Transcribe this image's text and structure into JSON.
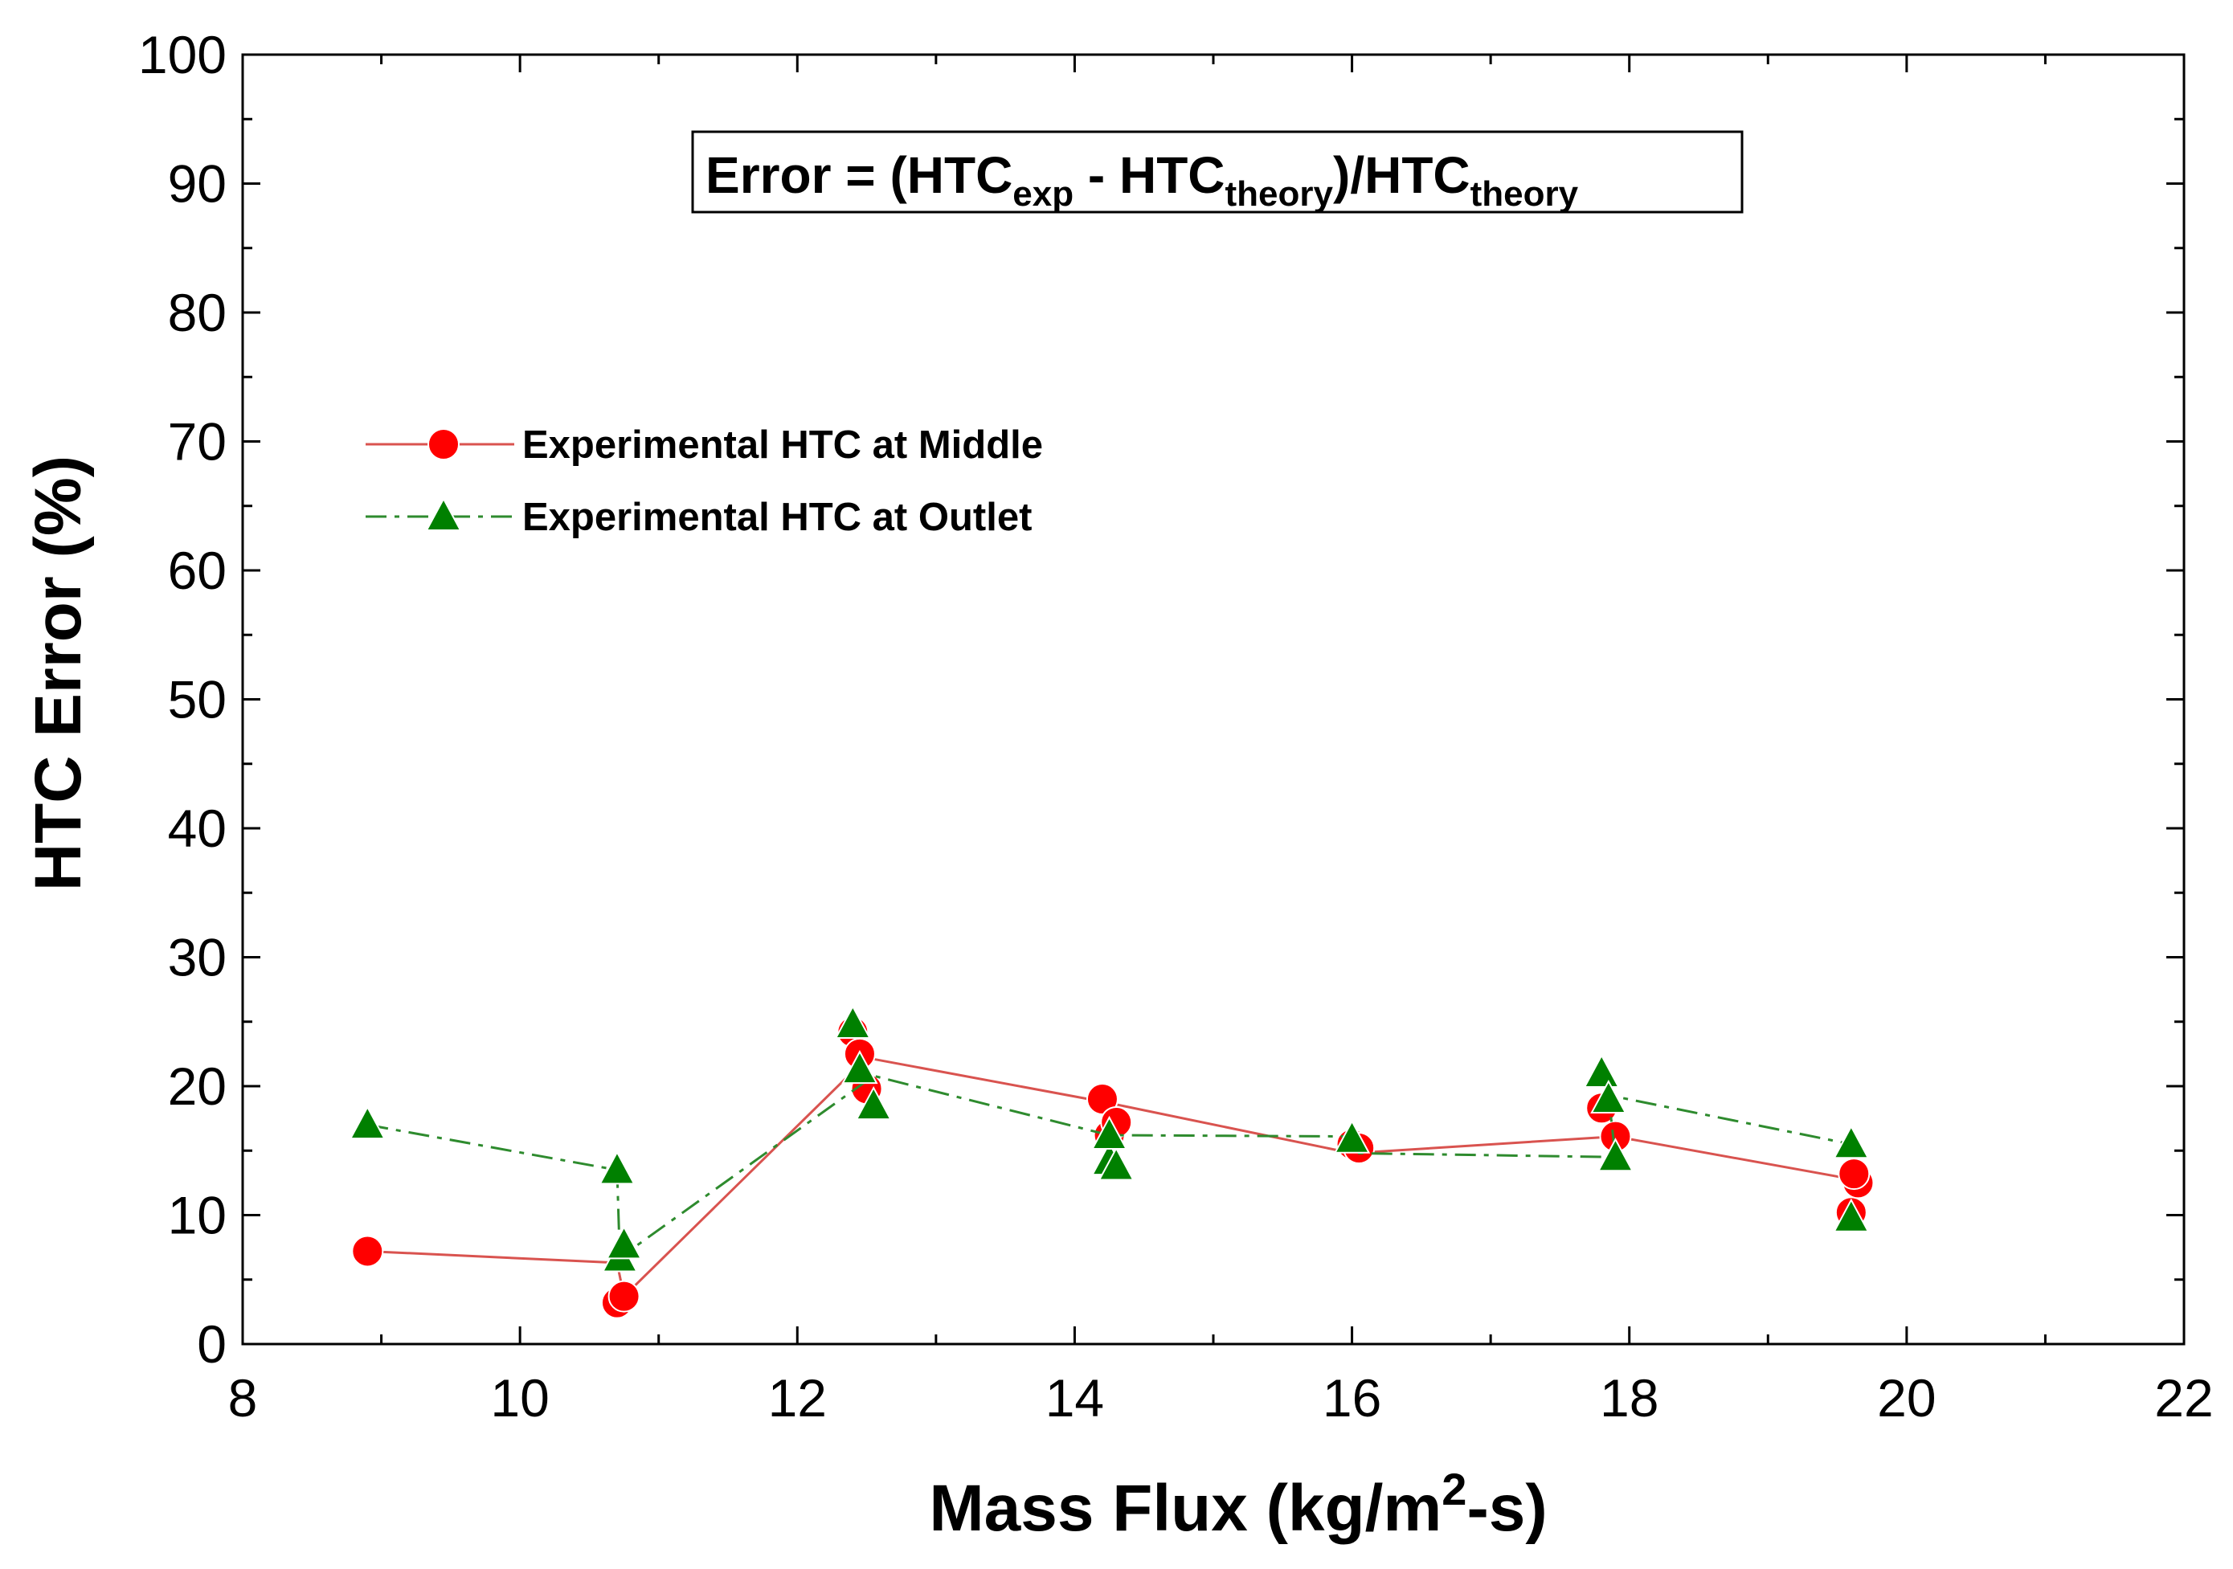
{
  "chart_data": {
    "type": "line",
    "title": "",
    "xlabel": {
      "main": "Mass Flux (kg/m",
      "sup": "2",
      "tail": "-s)"
    },
    "ylabel": "HTC Error (%)",
    "xlim": [
      8,
      22
    ],
    "ylim": [
      0,
      100
    ],
    "xticks": [
      8,
      10,
      12,
      14,
      16,
      18,
      20,
      22
    ],
    "yticks": [
      0,
      10,
      20,
      30,
      40,
      50,
      60,
      70,
      80,
      90,
      100
    ],
    "grid": false,
    "legend_position": "upper-left",
    "annotation": {
      "prefix": "Error = (HTC",
      "sub1": "exp",
      "mid": " - HTC",
      "sub2": "theory",
      "mid2": ")/HTC",
      "sub3": "theory"
    },
    "series": [
      {
        "name": "Experimental HTC at Middle",
        "color": "#ff0000",
        "line_color": "#d9534f",
        "marker": "circle",
        "line_style": "solid",
        "points": [
          {
            "x": 8.9,
            "y": 7.2
          },
          {
            "x": 10.7,
            "y": 3.2
          },
          {
            "x": 10.75,
            "y": 3.7
          },
          {
            "x": 12.4,
            "y": 24.2
          },
          {
            "x": 12.45,
            "y": 22.5
          },
          {
            "x": 12.5,
            "y": 19.8
          },
          {
            "x": 14.2,
            "y": 19.0
          },
          {
            "x": 14.25,
            "y": 16.2
          },
          {
            "x": 14.3,
            "y": 17.2
          },
          {
            "x": 16.0,
            "y": 15.5
          },
          {
            "x": 16.05,
            "y": 15.2
          },
          {
            "x": 17.8,
            "y": 18.3
          },
          {
            "x": 17.9,
            "y": 16.1
          },
          {
            "x": 19.6,
            "y": 10.2
          },
          {
            "x": 19.65,
            "y": 12.5
          },
          {
            "x": 19.62,
            "y": 13.2
          }
        ],
        "line": [
          {
            "x": 8.9,
            "y": 7.2
          },
          {
            "x": 10.7,
            "y": 6.3
          },
          {
            "x": 10.75,
            "y": 3.7
          },
          {
            "x": 12.5,
            "y": 22.2
          },
          {
            "x": 14.2,
            "y": 18.8
          },
          {
            "x": 16.0,
            "y": 14.8
          },
          {
            "x": 17.9,
            "y": 16.1
          },
          {
            "x": 19.6,
            "y": 12.8
          }
        ]
      },
      {
        "name": "Experimental HTC at Outlet",
        "color": "#008000",
        "line_color": "#2e8b2e",
        "marker": "triangle",
        "line_style": "dashdot",
        "points": [
          {
            "x": 8.9,
            "y": 17.0
          },
          {
            "x": 10.7,
            "y": 13.5
          },
          {
            "x": 10.72,
            "y": 6.7
          },
          {
            "x": 10.75,
            "y": 7.7
          },
          {
            "x": 12.4,
            "y": 24.8
          },
          {
            "x": 12.45,
            "y": 21.3
          },
          {
            "x": 12.55,
            "y": 18.5
          },
          {
            "x": 14.25,
            "y": 14.2
          },
          {
            "x": 14.3,
            "y": 13.8
          },
          {
            "x": 14.25,
            "y": 16.2
          },
          {
            "x": 16.0,
            "y": 15.9
          },
          {
            "x": 17.8,
            "y": 21.0
          },
          {
            "x": 17.85,
            "y": 19.0
          },
          {
            "x": 17.9,
            "y": 14.5
          },
          {
            "x": 19.6,
            "y": 15.5
          },
          {
            "x": 19.6,
            "y": 9.8
          }
        ],
        "line": [
          {
            "x": 8.9,
            "y": 17.0
          },
          {
            "x": 10.7,
            "y": 13.5
          },
          {
            "x": 10.72,
            "y": 6.7
          },
          {
            "x": 12.55,
            "y": 20.8
          },
          {
            "x": 14.25,
            "y": 16.2
          },
          {
            "x": 16.0,
            "y": 16.1
          },
          {
            "x": 16.05,
            "y": 14.8
          },
          {
            "x": 17.9,
            "y": 14.5
          },
          {
            "x": 17.85,
            "y": 19.3
          },
          {
            "x": 19.6,
            "y": 15.5
          }
        ]
      }
    ]
  }
}
